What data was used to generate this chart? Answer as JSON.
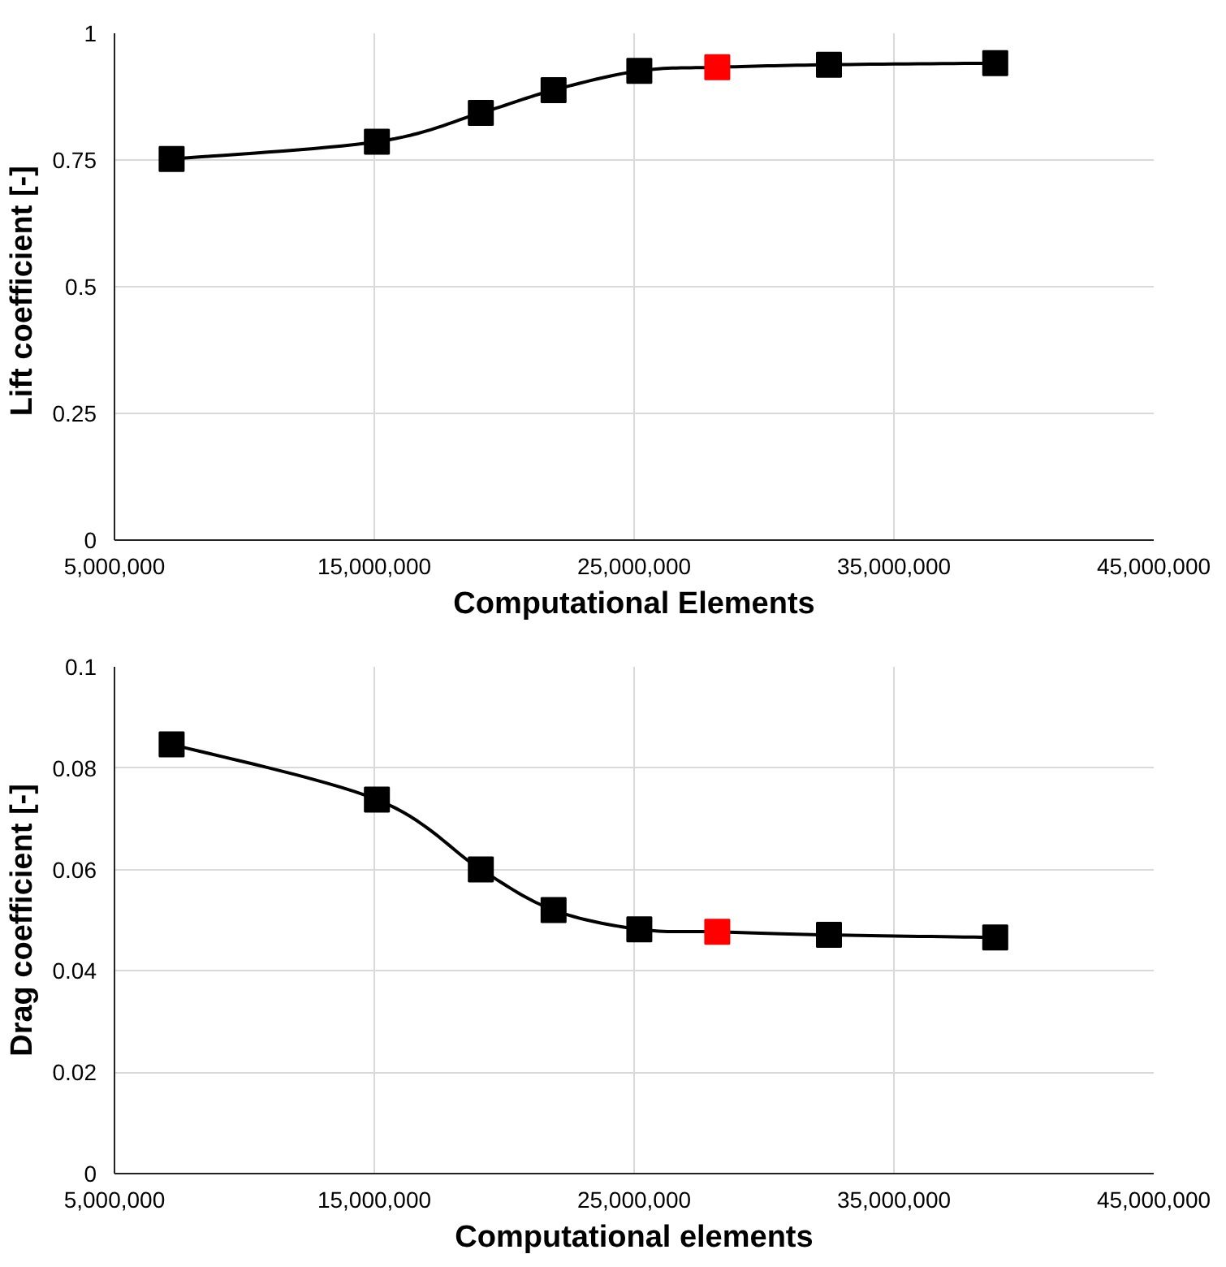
{
  "chart_data": [
    {
      "type": "line",
      "xlabel": "Computational Elements",
      "ylabel": "Lift coefficient  [-]",
      "x": [
        7200000,
        15100000,
        19100000,
        21900000,
        25200000,
        28200000,
        32500000,
        38900000
      ],
      "series": [
        {
          "color": "#000000",
          "colors": [
            "#000000",
            "#000000",
            "#000000",
            "#000000",
            "#000000",
            "#ff0000",
            "#000000",
            "#000000"
          ],
          "values": [
            0.752,
            0.786,
            0.843,
            0.888,
            0.926,
            0.933,
            0.938,
            0.941
          ]
        }
      ],
      "xlim": [
        5000000,
        45000000
      ],
      "ylim": [
        0,
        1
      ],
      "xticks": [
        {
          "value": 5000000,
          "label": "5,000,000"
        },
        {
          "value": 15000000,
          "label": "15,000,000"
        },
        {
          "value": 25000000,
          "label": "25,000,000"
        },
        {
          "value": 35000000,
          "label": "35,000,000"
        },
        {
          "value": 45000000,
          "label": "45,000,000"
        }
      ],
      "yticks": [
        0,
        0.25,
        0.5,
        0.75,
        1
      ],
      "grid": true,
      "marker": "square",
      "line_style": "solid"
    },
    {
      "type": "line",
      "xlabel": "Computational elements",
      "ylabel": "Drag coefficient [-]",
      "x": [
        7200000,
        15100000,
        19100000,
        21900000,
        25200000,
        28200000,
        32500000,
        38900000
      ],
      "series": [
        {
          "color": "#000000",
          "colors": [
            "#000000",
            "#000000",
            "#000000",
            "#000000",
            "#000000",
            "#ff0000",
            "#000000",
            "#000000"
          ],
          "values": [
            0.0847,
            0.0738,
            0.06,
            0.052,
            0.0482,
            0.0477,
            0.0471,
            0.0466
          ]
        }
      ],
      "xlim": [
        5000000,
        45000000
      ],
      "ylim": [
        0,
        0.1
      ],
      "xticks": [
        {
          "value": 5000000,
          "label": "5,000,000"
        },
        {
          "value": 15000000,
          "label": "15,000,000"
        },
        {
          "value": 25000000,
          "label": "25,000,000"
        },
        {
          "value": 35000000,
          "label": "35,000,000"
        },
        {
          "value": 45000000,
          "label": "45,000,000"
        }
      ],
      "yticks": [
        0,
        0.02,
        0.04,
        0.06,
        0.08,
        0.1
      ],
      "grid": true,
      "marker": "square",
      "line_style": "solid"
    }
  ]
}
